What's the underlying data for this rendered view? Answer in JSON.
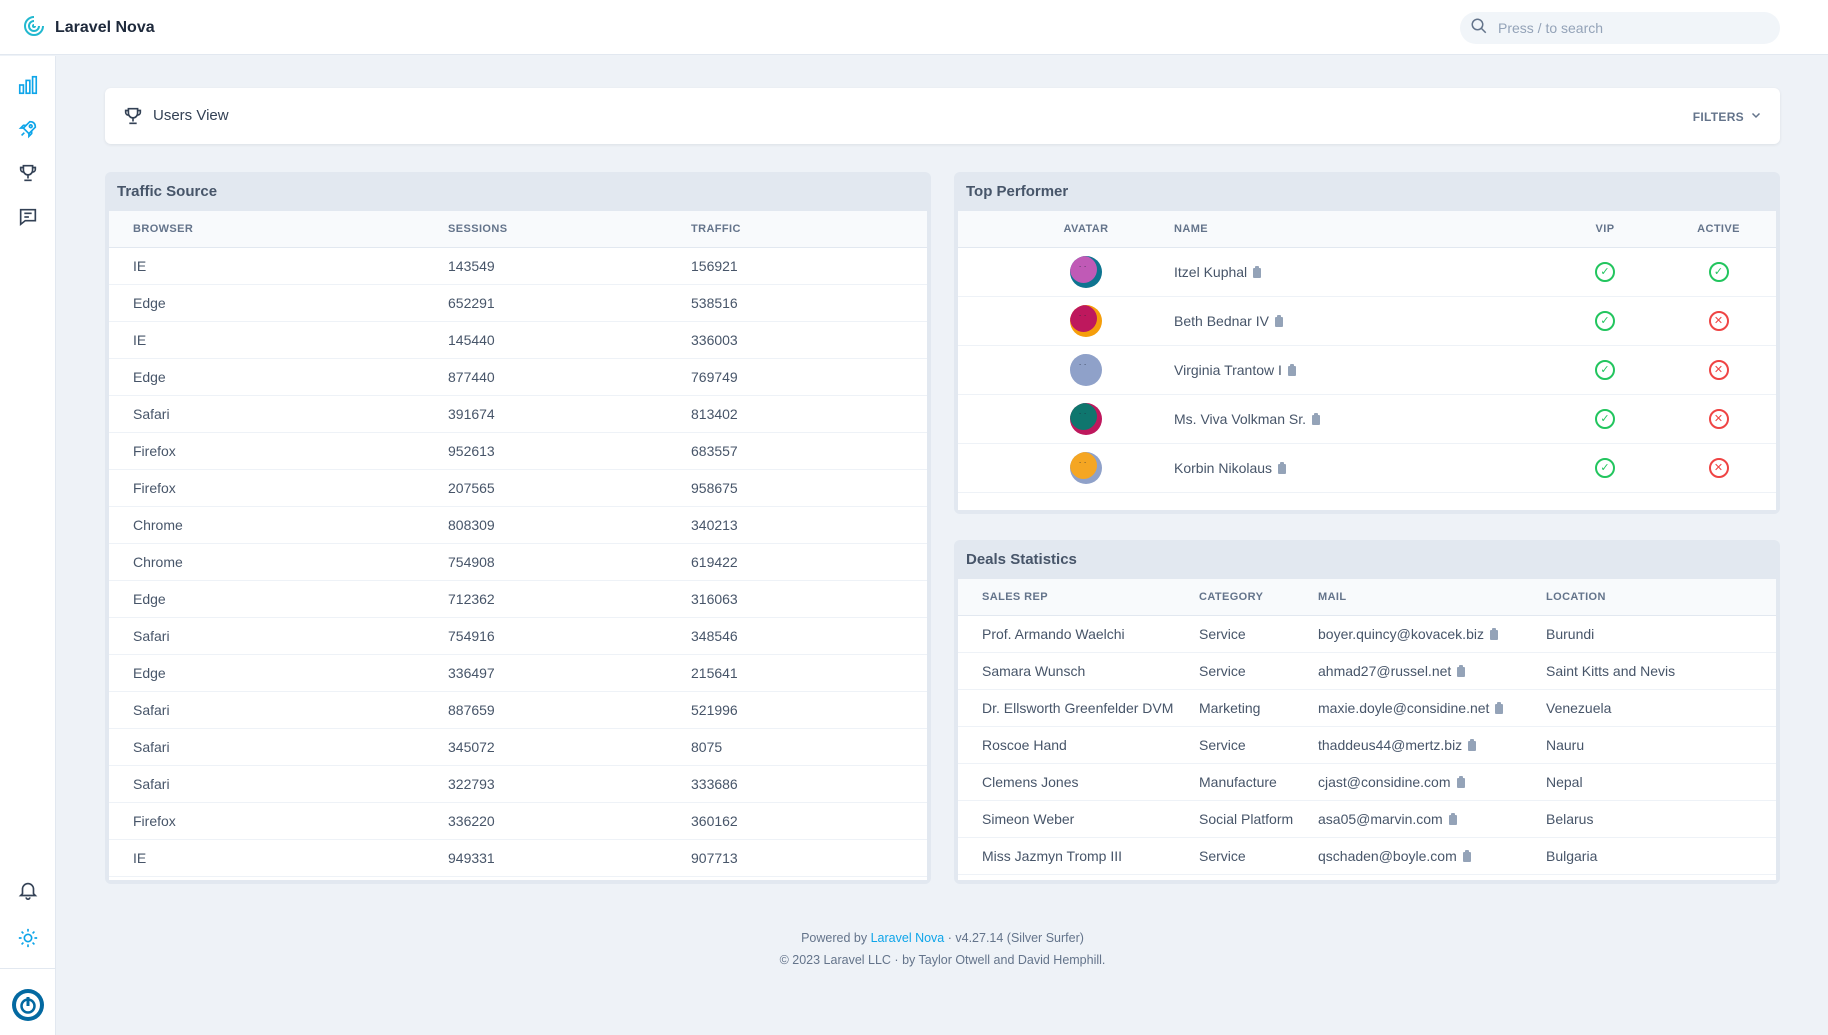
{
  "app": {
    "title": "Laravel Nova"
  },
  "search": {
    "placeholder": "Press / to search"
  },
  "sidebar": {
    "items": [
      "dashboard",
      "resources",
      "lenses",
      "messages"
    ]
  },
  "header": {
    "title": "Users View",
    "filters_label": "FILTERS"
  },
  "traffic": {
    "title": "Traffic Source",
    "columns": [
      "BROWSER",
      "SESSIONS",
      "TRAFFIC"
    ],
    "rows": [
      [
        "IE",
        "143549",
        "156921"
      ],
      [
        "Edge",
        "652291",
        "538516"
      ],
      [
        "IE",
        "145440",
        "336003"
      ],
      [
        "Edge",
        "877440",
        "769749"
      ],
      [
        "Safari",
        "391674",
        "813402"
      ],
      [
        "Firefox",
        "952613",
        "683557"
      ],
      [
        "Firefox",
        "207565",
        "958675"
      ],
      [
        "Chrome",
        "808309",
        "340213"
      ],
      [
        "Chrome",
        "754908",
        "619422"
      ],
      [
        "Edge",
        "712362",
        "316063"
      ],
      [
        "Safari",
        "754916",
        "348546"
      ],
      [
        "Edge",
        "336497",
        "215641"
      ],
      [
        "Safari",
        "887659",
        "521996"
      ],
      [
        "Safari",
        "345072",
        "8075"
      ],
      [
        "Safari",
        "322793",
        "333686"
      ],
      [
        "Firefox",
        "336220",
        "360162"
      ],
      [
        "IE",
        "949331",
        "907713"
      ]
    ]
  },
  "performers": {
    "title": "Top Performer",
    "columns": [
      "AVATAR",
      "NAME",
      "VIP",
      "ACTIVE"
    ],
    "rows": [
      {
        "name": "Itzel Kuphal",
        "vip": true,
        "active": true,
        "color": "#c05ab6",
        "back": "#0e7490"
      },
      {
        "name": "Beth Bednar IV",
        "vip": true,
        "active": false,
        "color": "#be185d",
        "back": "#f59e0b"
      },
      {
        "name": "Virginia Trantow I",
        "vip": true,
        "active": false,
        "color": "#8fa1c9",
        "back": "#8fa1c9"
      },
      {
        "name": "Ms. Viva Volkman Sr.",
        "vip": true,
        "active": false,
        "color": "#0f766e",
        "back": "#be185d"
      },
      {
        "name": "Korbin Nikolaus",
        "vip": true,
        "active": false,
        "color": "#f5a623",
        "back": "#8fa1c9"
      }
    ]
  },
  "deals": {
    "title": "Deals Statistics",
    "columns": [
      "SALES REP",
      "CATEGORY",
      "MAIL",
      "LOCATION"
    ],
    "rows": [
      [
        "Prof. Armando Waelchi",
        "Service",
        "boyer.quincy@kovacek.biz",
        "Burundi"
      ],
      [
        "Samara Wunsch",
        "Service",
        "ahmad27@russel.net",
        "Saint Kitts and Nevis"
      ],
      [
        "Dr. Ellsworth Greenfelder DVM",
        "Marketing",
        "maxie.doyle@considine.net",
        "Venezuela"
      ],
      [
        "Roscoe Hand",
        "Service",
        "thaddeus44@mertz.biz",
        "Nauru"
      ],
      [
        "Clemens Jones",
        "Manufacture",
        "cjast@considine.com",
        "Nepal"
      ],
      [
        "Simeon Weber",
        "Social Platform",
        "asa05@marvin.com",
        "Belarus"
      ],
      [
        "Miss Jazmyn Tromp III",
        "Service",
        "qschaden@boyle.com",
        "Bulgaria"
      ]
    ]
  },
  "footer": {
    "powered_prefix": "Powered by",
    "powered_link": "Laravel Nova",
    "version": "· v4.27.14 (Silver Surfer)",
    "copyright": "© 2023 Laravel LLC · by Taylor Otwell and David Hemphill."
  },
  "colors": {
    "accent": "#0ea5e9",
    "ok": "#22c55e",
    "bad": "#ef4444"
  }
}
